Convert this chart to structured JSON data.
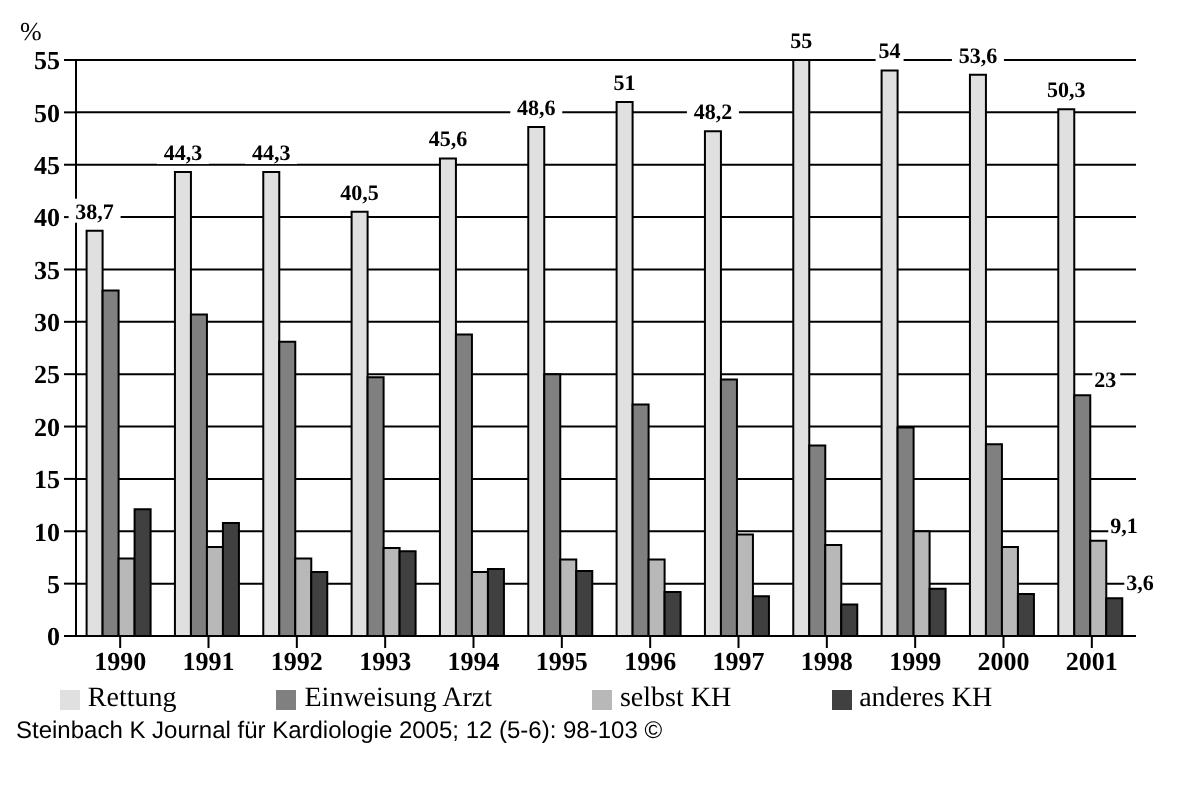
{
  "chart_data": {
    "type": "bar",
    "ylabel": "%",
    "categories": [
      "1990",
      "1991",
      "1992",
      "1993",
      "1994",
      "1995",
      "1996",
      "1997",
      "1998",
      "1999",
      "2000",
      "2001"
    ],
    "series": [
      {
        "name": "Rettung",
        "color": "#e0e0e0",
        "values": [
          38.7,
          44.3,
          44.3,
          40.5,
          45.6,
          48.6,
          51,
          48.2,
          55,
          54,
          53.6,
          50.3
        ],
        "value_labels": [
          "38,7",
          "44,3",
          "44,3",
          "40,5",
          "45,6",
          "48,6",
          "51",
          "48,2",
          "55",
          "54",
          "53,6",
          "50,3"
        ]
      },
      {
        "name": "Einweisung Arzt",
        "color": "#808080",
        "values": [
          33.0,
          30.7,
          28.1,
          24.7,
          28.8,
          25.0,
          22.1,
          24.5,
          18.2,
          19.9,
          18.3,
          23
        ],
        "value_labels": [
          null,
          null,
          null,
          null,
          null,
          null,
          null,
          null,
          null,
          null,
          null,
          "23"
        ]
      },
      {
        "name": "selbst KH",
        "color": "#b8b8b8",
        "values": [
          7.4,
          8.5,
          7.4,
          8.4,
          6.1,
          7.3,
          7.3,
          9.7,
          8.7,
          10.0,
          8.5,
          9.1
        ],
        "value_labels": [
          null,
          null,
          null,
          null,
          null,
          null,
          null,
          null,
          null,
          null,
          null,
          "9,1"
        ]
      },
      {
        "name": "anderes KH",
        "color": "#404040",
        "values": [
          12.1,
          10.8,
          6.1,
          8.1,
          6.4,
          6.2,
          4.2,
          3.8,
          3.0,
          4.5,
          4.0,
          3.6
        ],
        "value_labels": [
          null,
          null,
          null,
          null,
          null,
          null,
          null,
          null,
          null,
          null,
          null,
          "3,6"
        ]
      }
    ],
    "ylim": [
      0,
      55
    ],
    "yticks": [
      0,
      5,
      10,
      15,
      20,
      25,
      30,
      35,
      40,
      45,
      50,
      55
    ],
    "grid": "y",
    "legend": "bottom",
    "annotations": [
      "Steinbach K Journal für Kardiologie 2005; 12 (5-6): 98-103 ©"
    ]
  }
}
